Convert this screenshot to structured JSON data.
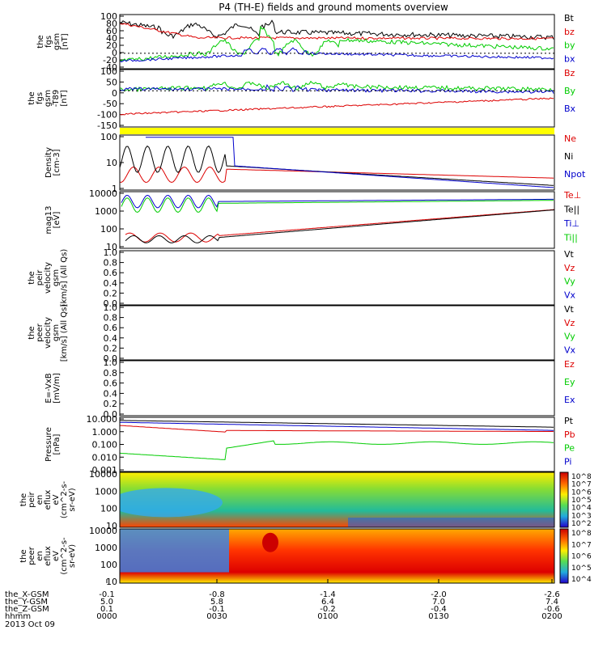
{
  "title": "P4 (TH-E) fields and ground moments overview",
  "colors": {
    "black": "#000000",
    "red": "#dd0000",
    "green": "#00cc00",
    "blue": "#0000cc",
    "yellow": "#ffff00"
  },
  "chart_data": [
    {
      "type": "line",
      "ylabel": [
        "the",
        "fgs",
        "gsm",
        "[nT]"
      ],
      "yticks": [
        "100",
        "80",
        "60",
        "40",
        "20",
        "0",
        "-20",
        "-40"
      ],
      "ylim": [
        -40,
        100
      ],
      "series": [
        {
          "name": "Bt",
          "color": "black"
        },
        {
          "name": "bz",
          "color": "red"
        },
        {
          "name": "by",
          "color": "green"
        },
        {
          "name": "bx",
          "color": "blue"
        }
      ]
    },
    {
      "type": "line",
      "ylabel": [
        "the",
        "fgs",
        "gsm",
        "-T89",
        "[nT]"
      ],
      "yticks": [
        "100",
        "50",
        "0",
        "-50",
        "-100",
        "-150"
      ],
      "ylim": [
        -170,
        100
      ],
      "series": [
        {
          "name": "Bz",
          "color": "red"
        },
        {
          "name": "By",
          "color": "green"
        },
        {
          "name": "Bx",
          "color": "blue"
        }
      ]
    },
    {
      "type": "line",
      "ylabel": [
        "Density",
        "[cm-3]"
      ],
      "yticks": [
        "100",
        "10",
        "1"
      ],
      "ylim": [
        0.8,
        250
      ],
      "scale": "log",
      "series": [
        {
          "name": "Ne",
          "color": "red"
        },
        {
          "name": "Ni",
          "color": "black"
        },
        {
          "name": "Npot",
          "color": "blue"
        }
      ]
    },
    {
      "type": "line",
      "ylabel": [
        "mag13",
        "[eV]"
      ],
      "yticks": [
        "10000",
        "1000",
        "100",
        "10"
      ],
      "ylim": [
        10,
        14000
      ],
      "scale": "log",
      "series": [
        {
          "name": "Te⊥",
          "color": "red"
        },
        {
          "name": "Te||",
          "color": "black"
        },
        {
          "name": "Ti⊥",
          "color": "blue"
        },
        {
          "name": "Ti||",
          "color": "green"
        }
      ]
    },
    {
      "type": "line",
      "ylabel": [
        "the",
        "peir",
        "velocity",
        "gsm",
        "[km/s] (All Qs)"
      ],
      "yticks": [
        "1.0",
        "0.8",
        "0.6",
        "0.4",
        "0.2",
        "0.0"
      ],
      "ylim": [
        0,
        1
      ],
      "series": [
        {
          "name": "Vt",
          "color": "black"
        },
        {
          "name": "Vz",
          "color": "red"
        },
        {
          "name": "Vy",
          "color": "green"
        },
        {
          "name": "Vx",
          "color": "blue"
        }
      ]
    },
    {
      "type": "line",
      "ylabel": [
        "the",
        "peer",
        "velocity",
        "gsm",
        "[km/s] (All Qs)"
      ],
      "yticks": [
        "1.0",
        "0.8",
        "0.6",
        "0.4",
        "0.2",
        "0.0"
      ],
      "ylim": [
        0,
        1
      ],
      "series": [
        {
          "name": "Vt",
          "color": "black"
        },
        {
          "name": "Vz",
          "color": "red"
        },
        {
          "name": "Vy",
          "color": "green"
        },
        {
          "name": "Vx",
          "color": "blue"
        }
      ]
    },
    {
      "type": "line",
      "ylabel": [
        "E=-VxB",
        "[mV/m]"
      ],
      "yticks": [
        "1.0",
        "0.8",
        "0.6",
        "0.4",
        "0.2",
        "0.0"
      ],
      "ylim": [
        0,
        1
      ],
      "series": [
        {
          "name": "Ez",
          "color": "red"
        },
        {
          "name": "Ey",
          "color": "green"
        },
        {
          "name": "Ex",
          "color": "blue"
        }
      ]
    },
    {
      "type": "line",
      "ylabel": [
        "Pressure",
        "[nPa]"
      ],
      "yticks": [
        "10.000",
        "1.000",
        "0.100",
        "0.010",
        "0.001"
      ],
      "ylim": [
        0.0007,
        14
      ],
      "scale": "log",
      "series": [
        {
          "name": "Pt",
          "color": "black"
        },
        {
          "name": "Pb",
          "color": "red"
        },
        {
          "name": "Pe",
          "color": "green"
        },
        {
          "name": "Pi",
          "color": "blue"
        }
      ]
    },
    {
      "type": "heatmap",
      "ylabel": [
        "the",
        "peir",
        "en",
        "eflux",
        "eV",
        "(cm^2-s-",
        "sr-eV)"
      ],
      "yticks": [
        "10000",
        "1000",
        "100",
        "10"
      ],
      "colorbar_ticks": [
        "10^8",
        "10^7",
        "10^6",
        "10^5",
        "10^4",
        "10^3",
        "10^2"
      ]
    },
    {
      "type": "heatmap",
      "ylabel": [
        "the",
        "peer",
        "en",
        "eflux",
        "eV",
        "(cm^2-s-",
        "sr-eV)"
      ],
      "yticks": [
        "10000",
        "1000",
        "100",
        "10"
      ],
      "colorbar_ticks": [
        "10^8",
        "10^7",
        "10^6",
        "10^5",
        "10^4"
      ]
    }
  ],
  "xaxis": {
    "row_labels": [
      "the_X-GSM",
      "the_Y-GSM",
      "the_Z-GSM",
      "hhmm"
    ],
    "columns": [
      [
        "-0.1",
        "5.0",
        "0.1",
        "0000"
      ],
      [
        "-0.8",
        "5.8",
        "-0.1",
        "0030"
      ],
      [
        "-1.4",
        "6.4",
        "-0.2",
        "0100"
      ],
      [
        "-2.0",
        "7.0",
        "-0.4",
        "0130"
      ],
      [
        "-2.6",
        "7.4",
        "-0.6",
        "0200"
      ]
    ],
    "date": "2013 Oct 09"
  }
}
